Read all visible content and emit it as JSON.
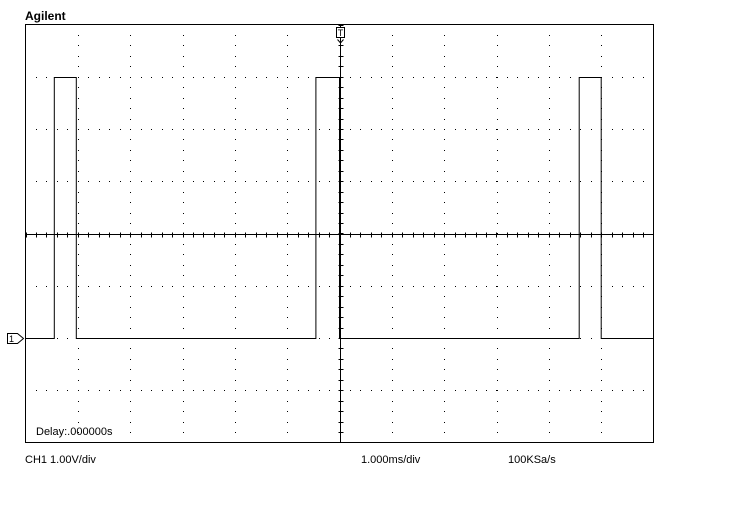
{
  "header": {
    "brand": "Agilent"
  },
  "screen": {
    "delay": "Delay:.000000s",
    "channel_marker": "1",
    "trigger_marker": "T"
  },
  "status_bar": {
    "channel_scale": "CH1 1.00V/div",
    "timebase": "1.000ms/div",
    "sample_rate": "100KSa/s"
  },
  "colors": {
    "trace": "#000000",
    "grid": "#000000",
    "background": "#ffffff"
  },
  "chart_data": {
    "type": "line",
    "title": "",
    "xlabel": "",
    "ylabel": "",
    "xlim": [
      -6,
      6
    ],
    "ylim": [
      -4,
      4
    ],
    "x_divisions": 12,
    "y_divisions": 8,
    "grid": true,
    "series": [
      {
        "x": [
          -6,
          -5.45,
          -5.45,
          -5.03,
          -5.03,
          -0.45,
          -0.45,
          0,
          0,
          4.58,
          4.58,
          5,
          5,
          6
        ],
        "y": [
          -2,
          -2,
          3,
          3,
          -2,
          -2,
          3,
          3,
          -2,
          -2,
          3,
          3,
          -2,
          -2
        ]
      }
    ]
  }
}
